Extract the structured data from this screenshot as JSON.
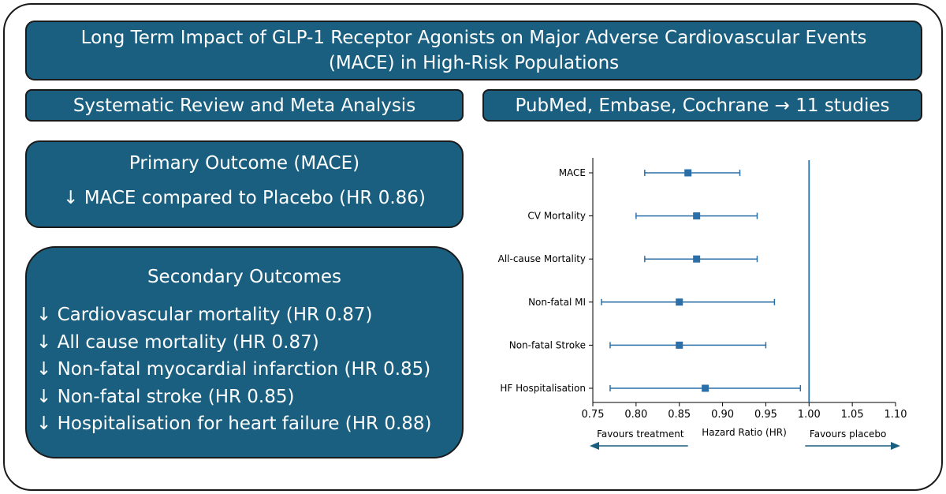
{
  "title": "Long Term Impact of GLP-1 Receptor Agonists on Major Adverse Cardiovascular Events (MACE) in High-Risk Populations",
  "left_header": "Systematic Review and Meta Analysis",
  "right_header": "PubMed, Embase,  Cochrane → 11 studies",
  "primary": {
    "heading": "Primary Outcome (MACE)",
    "item": "↓ MACE compared to Placebo (HR 0.86)"
  },
  "secondary": {
    "heading": "Secondary Outcomes",
    "items": [
      "↓ Cardiovascular mortality (HR 0.87)",
      "↓ All cause mortality (HR 0.87)",
      "↓ Non-fatal myocardial infarction (HR 0.85)",
      "↓ Non-fatal stroke (HR 0.85)",
      "↓ Hospitalisation for heart failure (HR 0.88)"
    ]
  },
  "colors": {
    "box_fill": "#1a5f7f",
    "marker": "#2b6fa8",
    "arrow": "#1a5f7f"
  },
  "chart_data": {
    "type": "scatter",
    "subtype": "forest-plot",
    "categories": [
      "MACE",
      "CV Mortality",
      "All-cause Mortality",
      "Non-fatal MI",
      "Non-fatal Stroke",
      "HF Hospitalisation"
    ],
    "hr": [
      0.86,
      0.87,
      0.87,
      0.85,
      0.85,
      0.88
    ],
    "ci_low": [
      0.81,
      0.8,
      0.81,
      0.76,
      0.77,
      0.77
    ],
    "ci_high": [
      0.92,
      0.94,
      0.94,
      0.96,
      0.95,
      0.99
    ],
    "xlim": [
      0.75,
      1.1
    ],
    "xticks": [
      "0.75",
      "0.80",
      "0.85",
      "0.90",
      "0.95",
      "1.00",
      "1.05",
      "1.10"
    ],
    "reference_line": 1.0,
    "xlabel": "Hazard Ratio (HR)",
    "left_annotation": "Favours treatment",
    "right_annotation": "Favours placebo",
    "grid": false
  }
}
